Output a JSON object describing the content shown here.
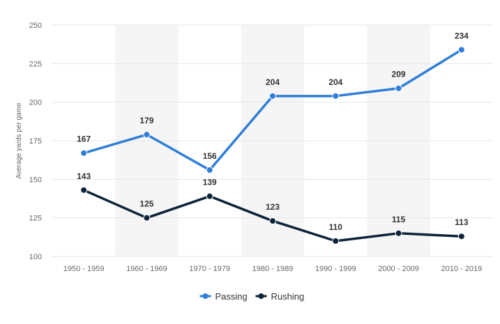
{
  "chart_data": {
    "type": "line",
    "title": "",
    "xlabel": "",
    "ylabel": "Average yards per game",
    "categories": [
      "1950 - 1959",
      "1960 - 1969",
      "1970 - 1979",
      "1980 - 1989",
      "1990 - 1999",
      "2000 - 2009",
      "2010 - 2019"
    ],
    "series": [
      {
        "name": "Passing",
        "values": [
          167,
          179,
          156,
          204,
          204,
          209,
          234
        ],
        "color": "#2f7ed8"
      },
      {
        "name": "Rushing",
        "values": [
          143,
          125,
          139,
          123,
          110,
          115,
          113
        ],
        "color": "#0d233a"
      }
    ],
    "ylim": [
      100,
      250
    ],
    "yticks": [
      100,
      125,
      150,
      175,
      200,
      225,
      250
    ],
    "grid": true,
    "alternating_bands": true,
    "data_labels": true,
    "legend_position": "bottom-center"
  }
}
